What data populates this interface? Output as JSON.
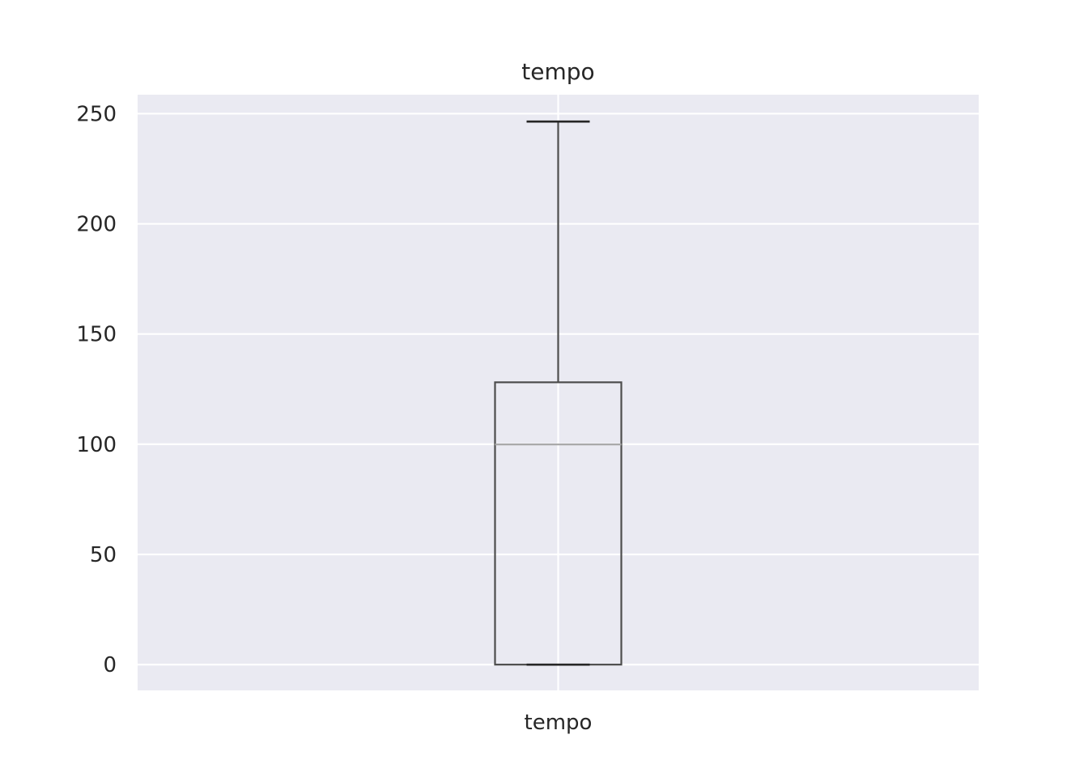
{
  "chart_data": {
    "type": "box",
    "title": "tempo",
    "xlabel": "",
    "ylabel": "",
    "categories": [
      "tempo"
    ],
    "boxes": [
      {
        "name": "tempo",
        "whisker_low": 0,
        "q1": 0,
        "median": 99.9,
        "q3": 128.1,
        "whisker_high": 246.4
      }
    ],
    "ylim": [
      -11.7,
      258.6
    ],
    "yticks": [
      0,
      50,
      100,
      150,
      200,
      250
    ],
    "ytick_labels": [
      "0",
      "50",
      "100",
      "150",
      "200",
      "250"
    ],
    "grid": true,
    "legend": "none",
    "colors": {
      "plot_background": "#eaeaf2",
      "grid": "#ffffff",
      "box_edge": "#4d4d4d",
      "median": "#aaaaaa",
      "whisker": "#4d4d4d",
      "cap": "#262626",
      "text": "#262626"
    }
  }
}
